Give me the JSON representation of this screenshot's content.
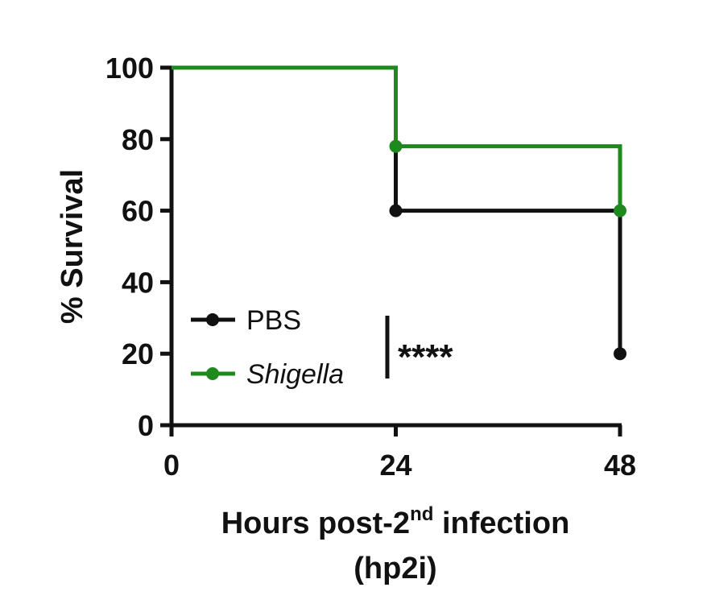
{
  "chart_data": {
    "type": "line",
    "step": true,
    "xlabel": "Hours post-2",
    "xlabel_superscript": "nd",
    "xlabel_suffix": " infection",
    "xlabel_line2": "(hp2i)",
    "ylabel": "% Survival",
    "xlim": [
      0,
      48
    ],
    "ylim": [
      0,
      100
    ],
    "xticks": [
      "0",
      "24",
      "48"
    ],
    "yticks": [
      "0",
      "20",
      "40",
      "60",
      "80",
      "100"
    ],
    "grid": false,
    "legend_position": "bottom-left",
    "series": [
      {
        "name": "PBS",
        "color": "#111111",
        "x": [
          0,
          24,
          48
        ],
        "y": [
          100,
          60,
          20
        ],
        "markers": [
          {
            "x": 24,
            "y": 60
          },
          {
            "x": 48,
            "y": 20
          }
        ]
      },
      {
        "name": "Shigella",
        "italic": true,
        "color": "#1e8a1e",
        "x": [
          0,
          24,
          48
        ],
        "y": [
          100,
          78,
          60
        ],
        "markers": [
          {
            "x": 24,
            "y": 78
          },
          {
            "x": 48,
            "y": 60
          }
        ]
      }
    ],
    "annotation": "****"
  }
}
